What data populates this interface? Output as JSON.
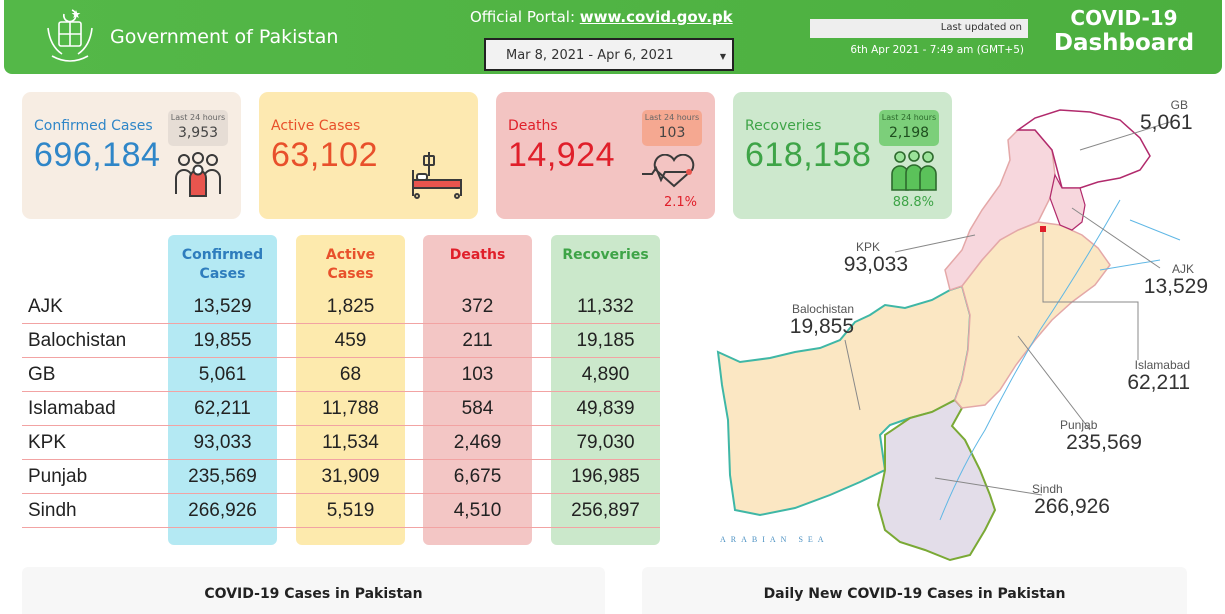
{
  "header": {
    "gov_title": "Government of Pakistan",
    "portal_prefix": "Official Portal: ",
    "portal_link": "www.covid.gov.pk",
    "date_range": "Mar 8, 2021 - Apr 6, 2021",
    "last_updated_label": "Last updated on",
    "last_updated_value": "6th Apr 2021 - 7:49 am (GMT+5)",
    "dash_title_1": "COVID-19",
    "dash_title_2": "Dashboard"
  },
  "cards": {
    "confirmed": {
      "label": "Confirmed Cases",
      "value": "696,184",
      "last24_label": "Last 24 hours",
      "last24_value": "3,953",
      "icon": "people-icon"
    },
    "active": {
      "label": "Active Cases",
      "value": "63,102",
      "icon": "hospital-bed-icon"
    },
    "deaths": {
      "label": "Deaths",
      "value": "14,924",
      "last24_label": "Last 24 hours",
      "last24_value": "103",
      "pct": "2.1%",
      "icon": "heartbeat-icon"
    },
    "recoveries": {
      "label": "Recoveries",
      "value": "618,158",
      "last24_label": "Last 24 hours",
      "last24_value": "2,198",
      "pct": "88.8%",
      "icon": "recovered-people-icon"
    }
  },
  "table": {
    "headers": [
      "Confirmed Cases",
      "Active Cases",
      "Deaths",
      "Recoveries"
    ],
    "header_lines": [
      [
        "Confirmed",
        "Cases"
      ],
      [
        "Active",
        "Cases"
      ],
      [
        "Deaths",
        ""
      ],
      [
        "Recoveries",
        ""
      ]
    ],
    "rows": [
      {
        "region": "AJK",
        "confirmed": "13,529",
        "active": "1,825",
        "deaths": "372",
        "recoveries": "11,332"
      },
      {
        "region": "Balochistan",
        "confirmed": "19,855",
        "active": "459",
        "deaths": "211",
        "recoveries": "19,185"
      },
      {
        "region": "GB",
        "confirmed": "5,061",
        "active": "68",
        "deaths": "103",
        "recoveries": "4,890"
      },
      {
        "region": "Islamabad",
        "confirmed": "62,211",
        "active": "11,788",
        "deaths": "584",
        "recoveries": "49,839"
      },
      {
        "region": "KPK",
        "confirmed": "93,033",
        "active": "11,534",
        "deaths": "2,469",
        "recoveries": "79,030"
      },
      {
        "region": "Punjab",
        "confirmed": "235,569",
        "active": "31,909",
        "deaths": "6,675",
        "recoveries": "196,985"
      },
      {
        "region": "Sindh",
        "confirmed": "266,926",
        "active": "5,519",
        "deaths": "4,510",
        "recoveries": "256,897"
      }
    ]
  },
  "map": {
    "regions": [
      {
        "name": "GB",
        "value": "5,061"
      },
      {
        "name": "KPK",
        "value": "93,033"
      },
      {
        "name": "AJK",
        "value": "13,529"
      },
      {
        "name": "Balochistan",
        "value": "19,855"
      },
      {
        "name": "Islamabad",
        "value": "62,211"
      },
      {
        "name": "Punjab",
        "value": "235,569"
      },
      {
        "name": "Sindh",
        "value": "266,926"
      }
    ],
    "sea_label": "ARABIAN SEA"
  },
  "panels": {
    "cases_title": "COVID-19 Cases in Pakistan",
    "daily_title": "Daily New COVID-19 Cases in Pakistan"
  },
  "colors": {
    "header_green": "#54b848",
    "confirmed_blue": "#2f86c8",
    "active_orange": "#e8502b",
    "deaths_red": "#e01f2a",
    "recoveries_green": "#3ea447"
  }
}
